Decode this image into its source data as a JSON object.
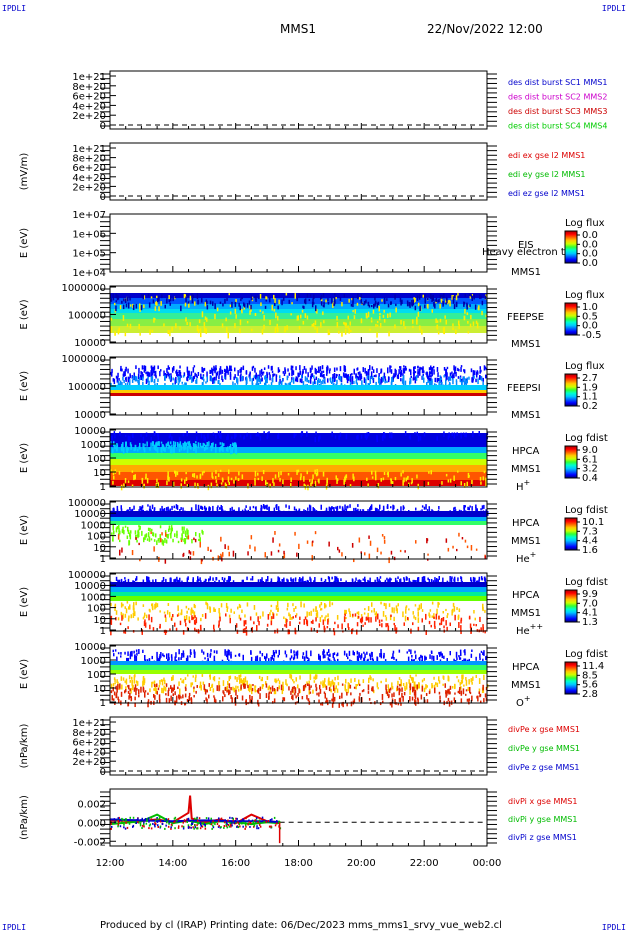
{
  "corners": {
    "tl": "IPDLI",
    "tr": "IPDLI",
    "bl": "IPDLI",
    "br": "IPDLI"
  },
  "header": {
    "title": "MMS1",
    "datetime": "22/Nov/2022 12:00"
  },
  "footer": {
    "text": "Produced by cl (IRAP)    Printing date: 06/Dec/2023    mms_mms1_srvy_vue_web2.cl"
  },
  "colors": {
    "mms1": "#0000cc",
    "mms2": "#cc00cc",
    "mms3": "#cc0000",
    "mms4": "#00cc00",
    "x": "#dd0000",
    "y": "#00bb00",
    "z": "#0000cc"
  },
  "chart_data": [
    {
      "type": "line",
      "panel": "des-dist",
      "ylabel": "",
      "yticks": [
        "1e+21",
        "8e+20",
        "6e+20",
        "4e+20",
        "2e+20",
        "0"
      ],
      "series": [
        {
          "name": "des dist burst SC1 MMS1",
          "values": []
        },
        {
          "name": "des dist burst SC2 MMS2",
          "values": []
        },
        {
          "name": "des dist burst SC3 MMS3",
          "values": []
        },
        {
          "name": "des dist burst SC4 MMS4",
          "values": []
        }
      ]
    },
    {
      "type": "line",
      "panel": "edi",
      "ylabel": "(mV/m)",
      "yticks": [
        "1e+21",
        "8e+20",
        "6e+20",
        "4e+20",
        "2e+20",
        "0"
      ],
      "series": [
        {
          "name": "edi ex gse l2 MMS1",
          "values": []
        },
        {
          "name": "edi ey gse l2 MMS1",
          "values": []
        },
        {
          "name": "edi ez gse l2 MMS1",
          "values": []
        }
      ]
    },
    {
      "type": "heatmap",
      "panel": "eis",
      "ylabel": "E (eV)",
      "yticks": [
        "1e+07",
        "1e+06",
        "1e+05",
        "1e+04"
      ],
      "labels": [
        "EIS",
        "MMS1"
      ],
      "overlay_text": "Heavy electron to",
      "cbar_title": "Log flux",
      "cbar_ticks": [
        "0.0",
        "0.0",
        "0.0",
        "0.0"
      ]
    },
    {
      "type": "heatmap",
      "panel": "feepse",
      "ylabel": "E (eV)",
      "yticks": [
        "1000000",
        "100000",
        "10000"
      ],
      "labels": [
        "FEEPSE",
        "MMS1"
      ],
      "cbar_title": "Log flux",
      "cbar_ticks": [
        "1.0",
        "0.5",
        "0.0",
        "-0.5"
      ]
    },
    {
      "type": "heatmap",
      "panel": "feepsi",
      "ylabel": "E (eV)",
      "yticks": [
        "1000000",
        "100000",
        "10000"
      ],
      "labels": [
        "FEEPSI",
        "MMS1"
      ],
      "cbar_title": "Log flux",
      "cbar_ticks": [
        "2.7",
        "1.9",
        "1.1",
        "0.2"
      ]
    },
    {
      "type": "heatmap",
      "panel": "hpca-h",
      "ylabel": "E (eV)",
      "yticks": [
        "10000",
        "1000",
        "100",
        "10",
        "1"
      ],
      "labels": [
        "HPCA",
        "MMS1",
        "H+"
      ],
      "cbar_title": "Log fdist",
      "cbar_ticks": [
        "9.0",
        "6.1",
        "3.2",
        "0.4"
      ]
    },
    {
      "type": "heatmap",
      "panel": "hpca-he",
      "ylabel": "E (eV)",
      "yticks": [
        "100000",
        "10000",
        "1000",
        "100",
        "10",
        "1"
      ],
      "labels": [
        "HPCA",
        "MMS1",
        "He+"
      ],
      "cbar_title": "Log fdist",
      "cbar_ticks": [
        "10.1",
        "7.3",
        "4.4",
        "1.6"
      ]
    },
    {
      "type": "heatmap",
      "panel": "hpca-hepp",
      "ylabel": "E (eV)",
      "yticks": [
        "100000",
        "10000",
        "1000",
        "100",
        "10",
        "1"
      ],
      "labels": [
        "HPCA",
        "MMS1",
        "He++"
      ],
      "cbar_title": "Log fdist",
      "cbar_ticks": [
        "9.9",
        "7.0",
        "4.1",
        "1.3"
      ]
    },
    {
      "type": "heatmap",
      "panel": "hpca-o",
      "ylabel": "E (eV)",
      "yticks": [
        "10000",
        "1000",
        "100",
        "10",
        "1"
      ],
      "labels": [
        "HPCA",
        "MMS1",
        "O+"
      ],
      "cbar_title": "Log fdist",
      "cbar_ticks": [
        "11.4",
        "8.5",
        "5.6",
        "2.8"
      ]
    },
    {
      "type": "line",
      "panel": "divpe",
      "ylabel": "(nPa/km)",
      "yticks": [
        "1e+21",
        "8e+20",
        "6e+20",
        "4e+20",
        "2e+20",
        "0"
      ],
      "series": [
        {
          "name": "divPe x gse MMS1",
          "values": []
        },
        {
          "name": "divPe y gse MMS1",
          "values": []
        },
        {
          "name": "divPe z gse MMS1",
          "values": []
        }
      ]
    },
    {
      "type": "line",
      "panel": "divpi",
      "ylabel": "(nPa/km)",
      "yticks": [
        "0.002",
        "0.000",
        "-0.002"
      ],
      "ylim": [
        -0.0025,
        0.0035
      ],
      "series": [
        {
          "name": "divPi x gse MMS1",
          "x": [
            12.0,
            13.0,
            13.5,
            14.0,
            14.5,
            14.55,
            14.6,
            15.0,
            15.5,
            16.0,
            16.5,
            17.0,
            17.4
          ],
          "values": [
            0.0002,
            0.0001,
            0.0003,
            0.0,
            0.001,
            0.0028,
            0.0004,
            0.0,
            0.0003,
            -0.0001,
            0.0008,
            0.0001,
            0.0
          ]
        },
        {
          "name": "divPi y gse MMS1",
          "x": [
            12.0,
            13.0,
            13.5,
            14.0,
            14.5,
            15.0,
            15.5,
            16.0,
            16.5,
            17.0,
            17.4
          ],
          "values": [
            -0.0002,
            0.0001,
            0.0008,
            -0.0001,
            0.0002,
            -0.0002,
            0.0001,
            0.0,
            -0.0002,
            0.0,
            -0.0001
          ]
        },
        {
          "name": "divPi z gse MMS1",
          "x": [
            12.0,
            13.0,
            14.0,
            15.0,
            16.0,
            17.0,
            17.4
          ],
          "values": [
            0.0003,
            0.0002,
            0.0001,
            0.0002,
            0.0001,
            0.0001,
            0.0
          ]
        }
      ]
    }
  ],
  "xaxis": {
    "ticks": [
      "12:00",
      "14:00",
      "16:00",
      "18:00",
      "20:00",
      "22:00",
      "00:00"
    ]
  }
}
